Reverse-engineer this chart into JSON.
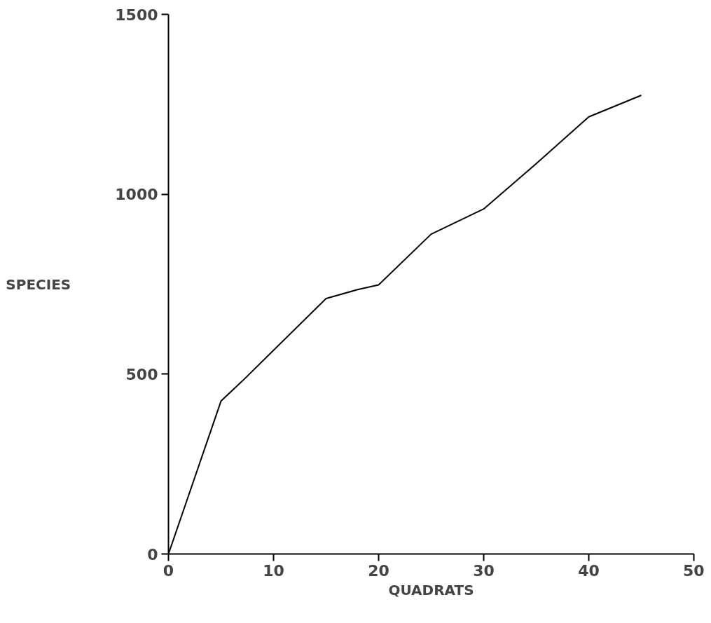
{
  "chart_data": {
    "type": "line",
    "xlabel": "QUADRATS",
    "ylabel": "SPECIES",
    "x": [
      0,
      5,
      7,
      15,
      18,
      20,
      25,
      30,
      35,
      40,
      45
    ],
    "series": [
      {
        "color": "#000000",
        "values": [
          0,
          425,
          480,
          710,
          735,
          748,
          889,
          959,
          1085,
          1215,
          1275
        ]
      }
    ],
    "xlim": [
      0,
      50
    ],
    "ylim": [
      0,
      1500
    ],
    "xticks": [
      0,
      10,
      20,
      30,
      40,
      50
    ],
    "yticks": [
      0,
      500,
      1000,
      1500
    ],
    "grid": false,
    "marker": "none",
    "line_style": "solid"
  }
}
